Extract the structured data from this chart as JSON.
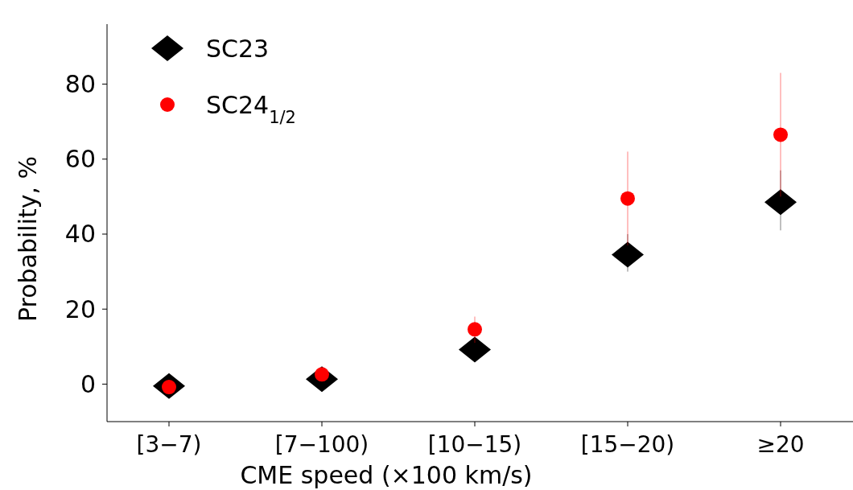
{
  "chart_data": {
    "type": "scatter",
    "xlabel": "CME  speed (×100 km/s)",
    "ylabel": "Probability, %",
    "categories": [
      "[3−7)",
      "[7−100)",
      "[10−15)",
      "[15−20)",
      "≥20"
    ],
    "series": [
      {
        "name": "SC23",
        "color": "#000000",
        "marker": "diamond",
        "values": [
          -0.5,
          1.3,
          9.2,
          34.5,
          48.5
        ],
        "errors": [
          null,
          null,
          null,
          [
            30,
            40
          ],
          [
            41,
            57
          ]
        ]
      },
      {
        "name": "SC24$_{1/2}$",
        "color": "#ff0000",
        "marker": "circle",
        "values": [
          -0.8,
          2.6,
          14.6,
          49.5,
          66.5
        ],
        "errors": [
          null,
          null,
          [
            11,
            18
          ],
          [
            37,
            62
          ],
          [
            50,
            83
          ]
        ]
      }
    ],
    "ylim": [
      -10,
      96
    ],
    "yticks": [
      0,
      20,
      40,
      60,
      80
    ],
    "grid": false,
    "legend": "top left"
  }
}
